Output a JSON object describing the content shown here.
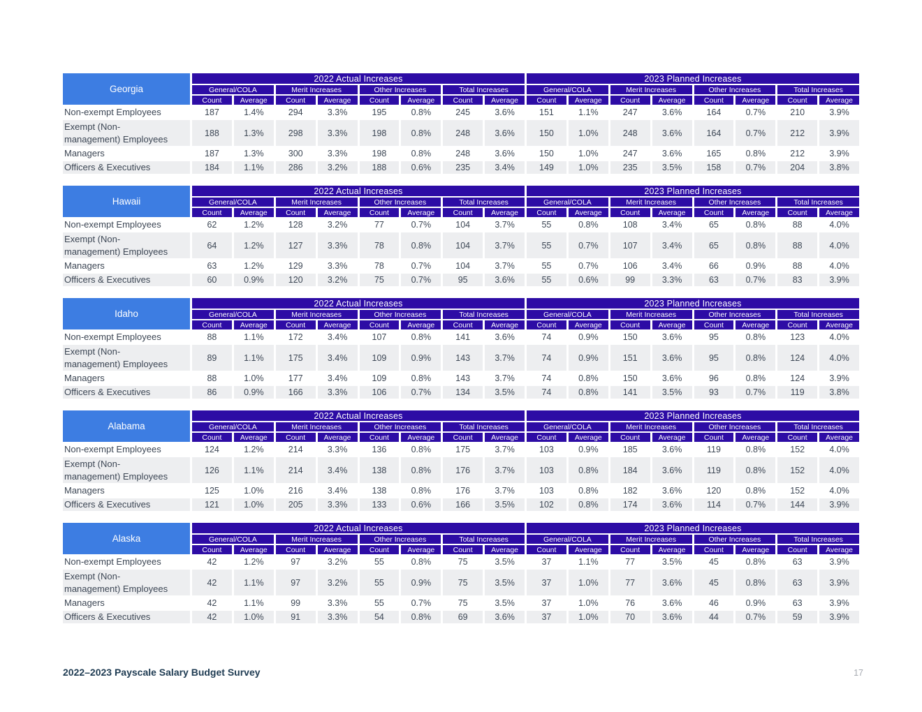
{
  "page": {
    "footer_title": "2022–2023 Payscale Salary Budget Survey",
    "page_number": "17"
  },
  "header_labels": {
    "year_2022": "2022 Actual Increases",
    "year_2023": "2023 Planned Increases",
    "categories": [
      "General/COLA",
      "Merit Increases",
      "Other Increases",
      "Total Increases"
    ],
    "subcolumns": [
      "Count",
      "Average"
    ]
  },
  "colors": {
    "state_header": "#3d7de2",
    "table_header": "#2d0ca5",
    "row_stripe": "#edeef0",
    "data_text": "#3c4654",
    "footer_text": "#1e3b52"
  },
  "tables": [
    {
      "state": "Georgia",
      "rows": [
        {
          "label": "Non-exempt Employees",
          "values": [
            "187",
            "1.4%",
            "294",
            "3.3%",
            "195",
            "0.8%",
            "245",
            "3.6%",
            "151",
            "1.1%",
            "247",
            "3.6%",
            "164",
            "0.7%",
            "210",
            "3.9%"
          ]
        },
        {
          "label": "Exempt (Non-management) Employees",
          "values": [
            "188",
            "1.3%",
            "298",
            "3.3%",
            "198",
            "0.8%",
            "248",
            "3.6%",
            "150",
            "1.0%",
            "248",
            "3.6%",
            "164",
            "0.7%",
            "212",
            "3.9%"
          ]
        },
        {
          "label": "Managers",
          "values": [
            "187",
            "1.3%",
            "300",
            "3.3%",
            "198",
            "0.8%",
            "248",
            "3.6%",
            "150",
            "1.0%",
            "247",
            "3.6%",
            "165",
            "0.8%",
            "212",
            "3.9%"
          ]
        },
        {
          "label": "Officers & Executives",
          "values": [
            "184",
            "1.1%",
            "286",
            "3.2%",
            "188",
            "0.6%",
            "235",
            "3.4%",
            "149",
            "1.0%",
            "235",
            "3.5%",
            "158",
            "0.7%",
            "204",
            "3.8%"
          ]
        }
      ]
    },
    {
      "state": "Hawaii",
      "rows": [
        {
          "label": "Non-exempt Employees",
          "values": [
            "62",
            "1.2%",
            "128",
            "3.2%",
            "77",
            "0.7%",
            "104",
            "3.7%",
            "55",
            "0.8%",
            "108",
            "3.4%",
            "65",
            "0.8%",
            "88",
            "4.0%"
          ]
        },
        {
          "label": "Exempt (Non-management) Employees",
          "values": [
            "64",
            "1.2%",
            "127",
            "3.3%",
            "78",
            "0.8%",
            "104",
            "3.7%",
            "55",
            "0.7%",
            "107",
            "3.4%",
            "65",
            "0.8%",
            "88",
            "4.0%"
          ]
        },
        {
          "label": "Managers",
          "values": [
            "63",
            "1.2%",
            "129",
            "3.3%",
            "78",
            "0.7%",
            "104",
            "3.7%",
            "55",
            "0.7%",
            "106",
            "3.4%",
            "66",
            "0.9%",
            "88",
            "4.0%"
          ]
        },
        {
          "label": "Officers & Executives",
          "values": [
            "60",
            "0.9%",
            "120",
            "3.2%",
            "75",
            "0.7%",
            "95",
            "3.6%",
            "55",
            "0.6%",
            "99",
            "3.3%",
            "63",
            "0.7%",
            "83",
            "3.9%"
          ]
        }
      ]
    },
    {
      "state": "Idaho",
      "rows": [
        {
          "label": "Non-exempt Employees",
          "values": [
            "88",
            "1.1%",
            "172",
            "3.4%",
            "107",
            "0.8%",
            "141",
            "3.6%",
            "74",
            "0.9%",
            "150",
            "3.6%",
            "95",
            "0.8%",
            "123",
            "4.0%"
          ]
        },
        {
          "label": "Exempt (Non-management) Employees",
          "values": [
            "89",
            "1.1%",
            "175",
            "3.4%",
            "109",
            "0.9%",
            "143",
            "3.7%",
            "74",
            "0.9%",
            "151",
            "3.6%",
            "95",
            "0.8%",
            "124",
            "4.0%"
          ]
        },
        {
          "label": "Managers",
          "values": [
            "88",
            "1.0%",
            "177",
            "3.4%",
            "109",
            "0.8%",
            "143",
            "3.7%",
            "74",
            "0.8%",
            "150",
            "3.6%",
            "96",
            "0.8%",
            "124",
            "3.9%"
          ]
        },
        {
          "label": "Officers & Executives",
          "values": [
            "86",
            "0.9%",
            "166",
            "3.3%",
            "106",
            "0.7%",
            "134",
            "3.5%",
            "74",
            "0.8%",
            "141",
            "3.5%",
            "93",
            "0.7%",
            "119",
            "3.8%"
          ]
        }
      ]
    },
    {
      "state": "Alabama",
      "rows": [
        {
          "label": "Non-exempt Employees",
          "values": [
            "124",
            "1.2%",
            "214",
            "3.3%",
            "136",
            "0.8%",
            "175",
            "3.7%",
            "103",
            "0.9%",
            "185",
            "3.6%",
            "119",
            "0.8%",
            "152",
            "4.0%"
          ]
        },
        {
          "label": "Exempt (Non-management) Employees",
          "values": [
            "126",
            "1.1%",
            "214",
            "3.4%",
            "138",
            "0.8%",
            "176",
            "3.7%",
            "103",
            "0.8%",
            "184",
            "3.6%",
            "119",
            "0.8%",
            "152",
            "4.0%"
          ]
        },
        {
          "label": "Managers",
          "values": [
            "125",
            "1.0%",
            "216",
            "3.4%",
            "138",
            "0.8%",
            "176",
            "3.7%",
            "103",
            "0.8%",
            "182",
            "3.6%",
            "120",
            "0.8%",
            "152",
            "4.0%"
          ]
        },
        {
          "label": "Officers & Executives",
          "values": [
            "121",
            "1.0%",
            "205",
            "3.3%",
            "133",
            "0.6%",
            "166",
            "3.5%",
            "102",
            "0.8%",
            "174",
            "3.6%",
            "114",
            "0.7%",
            "144",
            "3.9%"
          ]
        }
      ]
    },
    {
      "state": "Alaska",
      "rows": [
        {
          "label": "Non-exempt Employees",
          "values": [
            "42",
            "1.2%",
            "97",
            "3.2%",
            "55",
            "0.8%",
            "75",
            "3.5%",
            "37",
            "1.1%",
            "77",
            "3.5%",
            "45",
            "0.8%",
            "63",
            "3.9%"
          ]
        },
        {
          "label": "Exempt (Non-management) Employees",
          "values": [
            "42",
            "1.1%",
            "97",
            "3.2%",
            "55",
            "0.9%",
            "75",
            "3.5%",
            "37",
            "1.0%",
            "77",
            "3.6%",
            "45",
            "0.8%",
            "63",
            "3.9%"
          ]
        },
        {
          "label": "Managers",
          "values": [
            "42",
            "1.1%",
            "99",
            "3.3%",
            "55",
            "0.7%",
            "75",
            "3.5%",
            "37",
            "1.0%",
            "76",
            "3.6%",
            "46",
            "0.9%",
            "63",
            "3.9%"
          ]
        },
        {
          "label": "Officers & Executives",
          "values": [
            "42",
            "1.0%",
            "91",
            "3.3%",
            "54",
            "0.8%",
            "69",
            "3.6%",
            "37",
            "1.0%",
            "70",
            "3.6%",
            "44",
            "0.7%",
            "59",
            "3.9%"
          ]
        }
      ]
    }
  ]
}
